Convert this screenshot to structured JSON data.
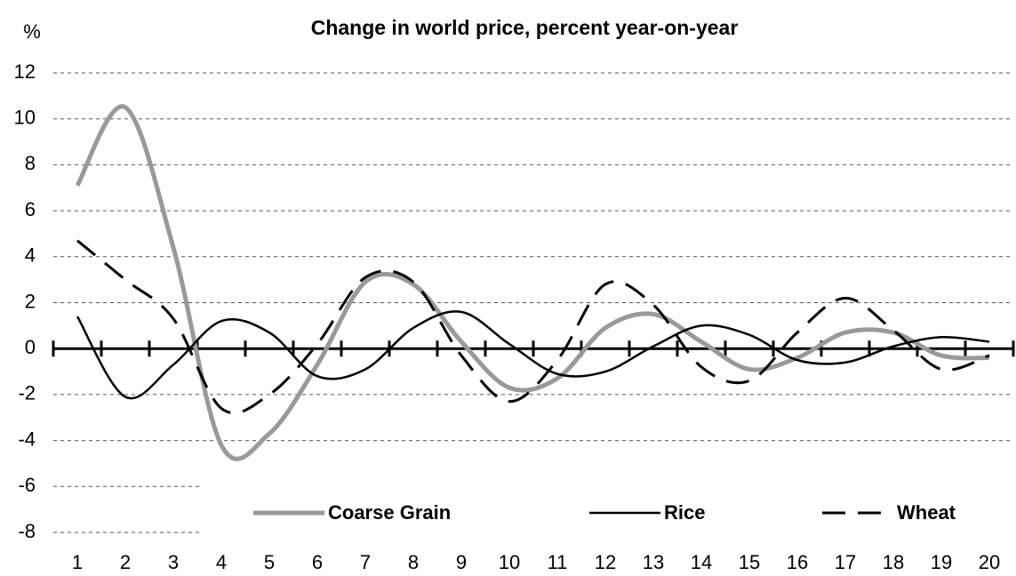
{
  "chart_data": {
    "type": "line",
    "title": "Change in world price, percent year-on-year",
    "ylabel": "%",
    "categories": [
      "1",
      "2",
      "3",
      "4",
      "5",
      "6",
      "7",
      "8",
      "9",
      "10",
      "11",
      "12",
      "13",
      "14",
      "15",
      "16",
      "17",
      "18",
      "19",
      "20"
    ],
    "series": [
      {
        "name": "Coarse Grain",
        "color": "#999999",
        "linestyle": "solid",
        "values": [
          7.1,
          10.5,
          4.4,
          -4.2,
          -3.7,
          -0.7,
          2.9,
          2.8,
          0.3,
          -1.7,
          -1.3,
          0.9,
          1.5,
          0.3,
          -0.9,
          -0.4,
          0.7,
          0.7,
          -0.3,
          -0.4
        ]
      },
      {
        "name": "Rice",
        "color": "#000000",
        "linestyle": "solid",
        "values": [
          1.4,
          -2.1,
          -0.7,
          1.2,
          0.7,
          -1.2,
          -0.9,
          0.9,
          1.6,
          0.2,
          -1.1,
          -1.0,
          0.1,
          1.0,
          0.6,
          -0.5,
          -0.6,
          0.1,
          0.5,
          0.3
        ]
      },
      {
        "name": "Wheat",
        "color": "#000000",
        "linestyle": "dashed",
        "values": [
          4.7,
          3.0,
          1.3,
          -2.6,
          -2.0,
          0.2,
          3.1,
          2.9,
          -0.3,
          -2.3,
          -0.5,
          2.8,
          1.9,
          -0.8,
          -1.4,
          0.7,
          2.2,
          0.8,
          -0.9,
          -0.3
        ]
      }
    ],
    "ylim": [
      -8,
      12
    ],
    "yticks": [
      -8,
      -6,
      -4,
      -2,
      0,
      2,
      4,
      6,
      8,
      10,
      12
    ],
    "grid": true,
    "legend": "bottom"
  }
}
